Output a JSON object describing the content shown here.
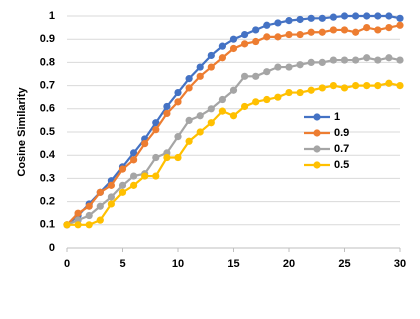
{
  "chart_data": {
    "type": "line",
    "y_label": "Cosine Similarity",
    "x": [
      0,
      1,
      2,
      3,
      4,
      5,
      6,
      7,
      8,
      9,
      10,
      11,
      12,
      13,
      14,
      15,
      16,
      17,
      18,
      19,
      20,
      21,
      22,
      23,
      24,
      25,
      26,
      27,
      28,
      29,
      30
    ],
    "series": [
      {
        "name": "1",
        "color": "#4472c4",
        "values": [
          0.1,
          0.14,
          0.19,
          0.24,
          0.29,
          0.35,
          0.41,
          0.47,
          0.54,
          0.61,
          0.67,
          0.73,
          0.78,
          0.83,
          0.87,
          0.9,
          0.92,
          0.94,
          0.96,
          0.97,
          0.98,
          0.985,
          0.99,
          0.99,
          0.995,
          1.0,
          1.0,
          1.0,
          1.0,
          1.0,
          0.99
        ]
      },
      {
        "name": "0.9",
        "color": "#ed7d31",
        "values": [
          0.1,
          0.15,
          0.18,
          0.24,
          0.27,
          0.34,
          0.38,
          0.45,
          0.51,
          0.58,
          0.63,
          0.69,
          0.74,
          0.78,
          0.82,
          0.86,
          0.88,
          0.89,
          0.91,
          0.91,
          0.92,
          0.92,
          0.93,
          0.93,
          0.94,
          0.94,
          0.93,
          0.95,
          0.94,
          0.95,
          0.96
        ]
      },
      {
        "name": "0.7",
        "color": "#a5a5a5",
        "values": [
          0.1,
          0.12,
          0.14,
          0.18,
          0.22,
          0.27,
          0.31,
          0.32,
          0.39,
          0.41,
          0.48,
          0.55,
          0.57,
          0.6,
          0.64,
          0.68,
          0.74,
          0.74,
          0.76,
          0.78,
          0.78,
          0.79,
          0.8,
          0.8,
          0.81,
          0.81,
          0.81,
          0.82,
          0.81,
          0.82,
          0.81
        ]
      },
      {
        "name": "0.5",
        "color": "#ffc000",
        "values": [
          0.1,
          0.1,
          0.1,
          0.12,
          0.19,
          0.24,
          0.27,
          0.31,
          0.31,
          0.39,
          0.39,
          0.46,
          0.5,
          0.54,
          0.59,
          0.57,
          0.61,
          0.63,
          0.64,
          0.65,
          0.67,
          0.67,
          0.68,
          0.69,
          0.7,
          0.69,
          0.7,
          0.7,
          0.7,
          0.71,
          0.7
        ]
      }
    ],
    "xlim": [
      0,
      30
    ],
    "xticks": [
      0,
      5,
      10,
      15,
      20,
      25,
      30
    ],
    "ylim": [
      0,
      1
    ],
    "yticks": [
      0,
      0.1,
      0.2,
      0.3,
      0.4,
      0.5,
      0.6,
      0.7,
      0.8,
      0.9,
      1
    ],
    "grid": true,
    "legend": "right"
  }
}
